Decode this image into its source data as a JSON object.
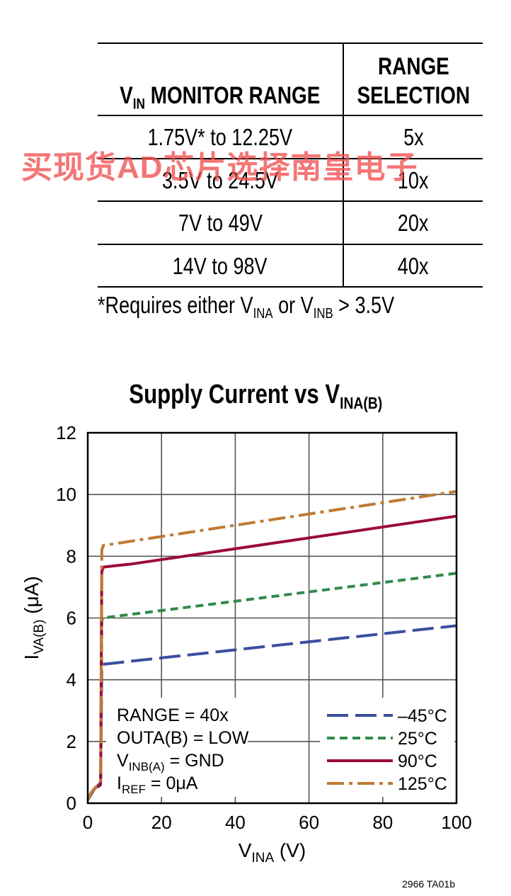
{
  "table": {
    "header_col1_main": "V",
    "header_col1_sub": "IN",
    "header_col1_rest": " MONITOR RANGE",
    "header_col2_line1": "RANGE",
    "header_col2_line2": "SELECTION",
    "rows": [
      {
        "range": "1.75V* to 12.25V",
        "selection": "5x"
      },
      {
        "range": "3.5V to 24.5V",
        "selection": "10x"
      },
      {
        "range": "7V to 49V",
        "selection": "20x"
      },
      {
        "range": "14V to 98V",
        "selection": "40x"
      }
    ],
    "footnote_a": "*Requires either V",
    "footnote_sub1": "INA",
    "footnote_b": " or V",
    "footnote_sub2": "INB",
    "footnote_c": " > 3.5V"
  },
  "watermark": "买现货AD芯片选择南皇电子",
  "credit": "2966 TA01b",
  "chart_data": {
    "type": "line",
    "title_main": "Supply Current vs V",
    "title_sub": "INA(B)",
    "xlabel_main": "V",
    "xlabel_sub": "INA",
    "xlabel_unit": " (V)",
    "ylabel_main": "I",
    "ylabel_sub": "VA(B)",
    "ylabel_unit": " (μA)",
    "xlim": [
      0,
      100
    ],
    "ylim": [
      0,
      12
    ],
    "xticks": [
      "0",
      "20",
      "40",
      "60",
      "80",
      "100"
    ],
    "yticks": [
      "0",
      "2",
      "4",
      "6",
      "8",
      "10",
      "12"
    ],
    "grid": true,
    "legend_position": "bottom-right",
    "conditions": [
      {
        "main": "RANGE = 40x",
        "sub": "",
        "rest": ""
      },
      {
        "main": "OUTA(B) = LOW",
        "sub": "",
        "rest": ""
      },
      {
        "main": "V",
        "sub": "INB(A)",
        "rest": " = GND"
      },
      {
        "main": "I",
        "sub": "REF",
        "rest": " = 0μA"
      }
    ],
    "series": [
      {
        "name": "–45°C",
        "color": "#3a4ea0",
        "dash": "long-dash",
        "x": [
          0,
          1,
          2,
          3,
          3.5,
          3.8,
          4.0,
          100
        ],
        "y": [
          0.1,
          0.3,
          0.5,
          0.55,
          0.6,
          4.4,
          4.5,
          5.75
        ]
      },
      {
        "name": "25°C",
        "color": "#2e8b4a",
        "dash": "short-dash",
        "x": [
          0,
          1,
          2,
          3,
          3.5,
          3.8,
          4.0,
          100
        ],
        "y": [
          0.1,
          0.35,
          0.5,
          0.6,
          0.7,
          5.9,
          6.0,
          7.45
        ]
      },
      {
        "name": "90°C",
        "color": "#9b0a3a",
        "dash": "solid",
        "x": [
          0,
          1,
          2,
          3,
          3.5,
          3.8,
          4.2,
          8,
          12,
          100
        ],
        "y": [
          0.1,
          0.35,
          0.5,
          0.55,
          0.65,
          7.5,
          7.65,
          7.7,
          7.75,
          9.3
        ]
      },
      {
        "name": "125°C",
        "color": "#c07a35",
        "dash": "dash-dot",
        "x": [
          0,
          1,
          2,
          3,
          3.5,
          3.8,
          4.2,
          100
        ],
        "y": [
          0.1,
          0.35,
          0.5,
          0.6,
          0.75,
          8.2,
          8.35,
          10.1
        ]
      }
    ]
  }
}
